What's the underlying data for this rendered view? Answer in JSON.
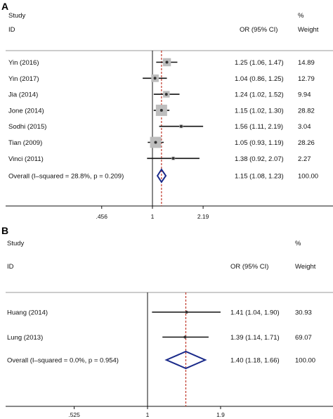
{
  "chart_data": [
    {
      "type": "forest",
      "panel_label": "A",
      "header": {
        "study": "Study",
        "id": "ID",
        "or": "OR (95% CI)",
        "pct": "%",
        "weight": "Weight"
      },
      "log_scale": true,
      "xlim": [
        0.456,
        2.19
      ],
      "x_ticks": [
        {
          "value": 0.456,
          "label": ".456"
        },
        {
          "value": 1,
          "label": "1"
        },
        {
          "value": 2.19,
          "label": "2.19"
        }
      ],
      "null_line": 1,
      "pooled_line": 1.15,
      "studies": [
        {
          "name": "Yin (2016)",
          "or": 1.25,
          "lo": 1.06,
          "hi": 1.47,
          "ci_text": "1.25 (1.06, 1.47)",
          "weight": "14.89"
        },
        {
          "name": "Yin (2017)",
          "or": 1.04,
          "lo": 0.86,
          "hi": 1.25,
          "ci_text": "1.04 (0.86, 1.25)",
          "weight": "12.79"
        },
        {
          "name": "Jia (2014)",
          "or": 1.24,
          "lo": 1.02,
          "hi": 1.52,
          "ci_text": "1.24 (1.02, 1.52)",
          "weight": "9.94"
        },
        {
          "name": "Jone (2014)",
          "or": 1.15,
          "lo": 1.02,
          "hi": 1.3,
          "ci_text": "1.15 (1.02, 1.30)",
          "weight": "28.82"
        },
        {
          "name": "Sodhi (2015)",
          "or": 1.56,
          "lo": 1.11,
          "hi": 2.19,
          "ci_text": "1.56 (1.11, 2.19)",
          "weight": "3.04"
        },
        {
          "name": "Tian (2009)",
          "or": 1.05,
          "lo": 0.93,
          "hi": 1.19,
          "ci_text": "1.05 (0.93, 1.19)",
          "weight": "28.26"
        },
        {
          "name": "Vinci (2011)",
          "or": 1.38,
          "lo": 0.92,
          "hi": 2.07,
          "ci_text": "1.38 (0.92, 2.07)",
          "weight": "2.27"
        }
      ],
      "overall": {
        "label": "Overall  (I–squared = 28.8%, p = 0.209)",
        "or": 1.15,
        "lo": 1.08,
        "hi": 1.23,
        "ci_text": "1.15 (1.08, 1.23)",
        "weight": "100.00"
      }
    },
    {
      "type": "forest",
      "panel_label": "B",
      "header": {
        "study": "Study",
        "id": "ID",
        "or": "OR (95% CI)",
        "pct": "%",
        "weight": "Weight"
      },
      "log_scale": true,
      "xlim": [
        0.525,
        1.9
      ],
      "x_ticks": [
        {
          "value": 0.525,
          "label": ".525"
        },
        {
          "value": 1,
          "label": "1"
        },
        {
          "value": 1.9,
          "label": "1.9"
        }
      ],
      "null_line": 1,
      "pooled_line": 1.4,
      "studies": [
        {
          "name": "Huang (2014)",
          "or": 1.41,
          "lo": 1.04,
          "hi": 1.9,
          "ci_text": "1.41 (1.04, 1.90)",
          "weight": "30.93"
        },
        {
          "name": "Lung (2013)",
          "or": 1.39,
          "lo": 1.14,
          "hi": 1.71,
          "ci_text": "1.39 (1.14, 1.71)",
          "weight": "69.07"
        }
      ],
      "overall": {
        "label": "Overall  (I–squared = 0.0%, p = 0.954)",
        "or": 1.4,
        "lo": 1.18,
        "hi": 1.66,
        "ci_text": "1.40 (1.18, 1.66)",
        "weight": "100.00"
      }
    }
  ],
  "colors": {
    "pooled_line": "#c0392b",
    "diamond": "#1a2a8a",
    "weight_box": "#bdbdbd",
    "rule": "#999999"
  }
}
